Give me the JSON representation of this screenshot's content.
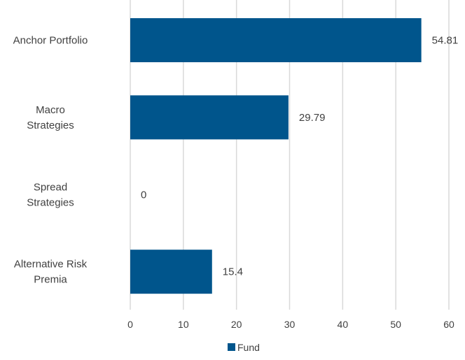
{
  "chart_data": {
    "type": "bar",
    "orientation": "horizontal",
    "categories": [
      [
        "Anchor Portfolio"
      ],
      [
        "Macro",
        "Strategies"
      ],
      [
        "Spread",
        "Strategies"
      ],
      [
        "Alternative Risk",
        "Premia"
      ]
    ],
    "series": [
      {
        "name": "Fund",
        "color": "#00558c",
        "values": [
          54.81,
          29.79,
          0,
          15.4
        ]
      }
    ],
    "data_labels": [
      "54.81",
      "29.79",
      "0",
      "15.4"
    ],
    "xlim": [
      0,
      60
    ],
    "xticks": [
      0,
      10,
      20,
      30,
      40,
      50,
      60
    ],
    "grid": "vertical",
    "legend": "bottom-center"
  }
}
